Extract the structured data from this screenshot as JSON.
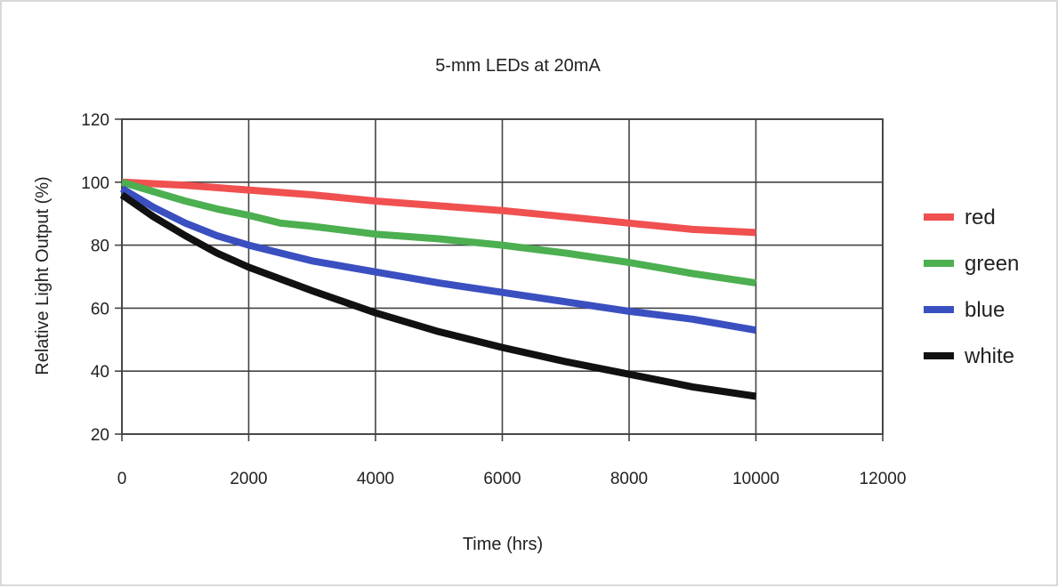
{
  "chart_data": {
    "type": "line",
    "title": "5-mm LEDs at 20mA",
    "xlabel": "Time (hrs)",
    "ylabel": "Relative Light Output (%)",
    "xlim": [
      0,
      12000
    ],
    "ylim": [
      20,
      120
    ],
    "xticks": [
      "0",
      "2000",
      "4000",
      "6000",
      "8000",
      "10000",
      "12000"
    ],
    "yticks": [
      "20",
      "40",
      "60",
      "80",
      "100",
      "120"
    ],
    "grid": true,
    "legend_position": "right",
    "series": [
      {
        "name": "red",
        "color": "#f05050",
        "points": [
          [
            0,
            100
          ],
          [
            1000,
            99
          ],
          [
            2000,
            97.5
          ],
          [
            3000,
            96
          ],
          [
            4000,
            94
          ],
          [
            5000,
            92.5
          ],
          [
            6000,
            91
          ],
          [
            7000,
            89
          ],
          [
            8000,
            87
          ],
          [
            9000,
            85
          ],
          [
            10000,
            84
          ]
        ]
      },
      {
        "name": "green",
        "color": "#4caf50",
        "points": [
          [
            0,
            100
          ],
          [
            500,
            97
          ],
          [
            1000,
            94
          ],
          [
            1500,
            91.5
          ],
          [
            2000,
            89.5
          ],
          [
            2500,
            87
          ],
          [
            3000,
            86
          ],
          [
            4000,
            83.5
          ],
          [
            5000,
            82
          ],
          [
            6000,
            80
          ],
          [
            7000,
            77.5
          ],
          [
            8000,
            74.5
          ],
          [
            9000,
            71
          ],
          [
            10000,
            68
          ]
        ]
      },
      {
        "name": "blue",
        "color": "#3a4fc0",
        "points": [
          [
            0,
            98
          ],
          [
            500,
            92
          ],
          [
            1000,
            87
          ],
          [
            1500,
            83
          ],
          [
            2000,
            80
          ],
          [
            3000,
            75
          ],
          [
            4000,
            71.5
          ],
          [
            5000,
            68
          ],
          [
            6000,
            65
          ],
          [
            7000,
            62
          ],
          [
            8000,
            59
          ],
          [
            9000,
            56.5
          ],
          [
            10000,
            53
          ]
        ]
      },
      {
        "name": "white",
        "color": "#111111",
        "points": [
          [
            0,
            96
          ],
          [
            500,
            89
          ],
          [
            1000,
            83
          ],
          [
            1500,
            77.5
          ],
          [
            2000,
            73
          ],
          [
            3000,
            65.5
          ],
          [
            4000,
            58.5
          ],
          [
            5000,
            52.5
          ],
          [
            6000,
            47.5
          ],
          [
            7000,
            43
          ],
          [
            8000,
            39
          ],
          [
            9000,
            35
          ],
          [
            10000,
            32
          ]
        ]
      }
    ]
  }
}
